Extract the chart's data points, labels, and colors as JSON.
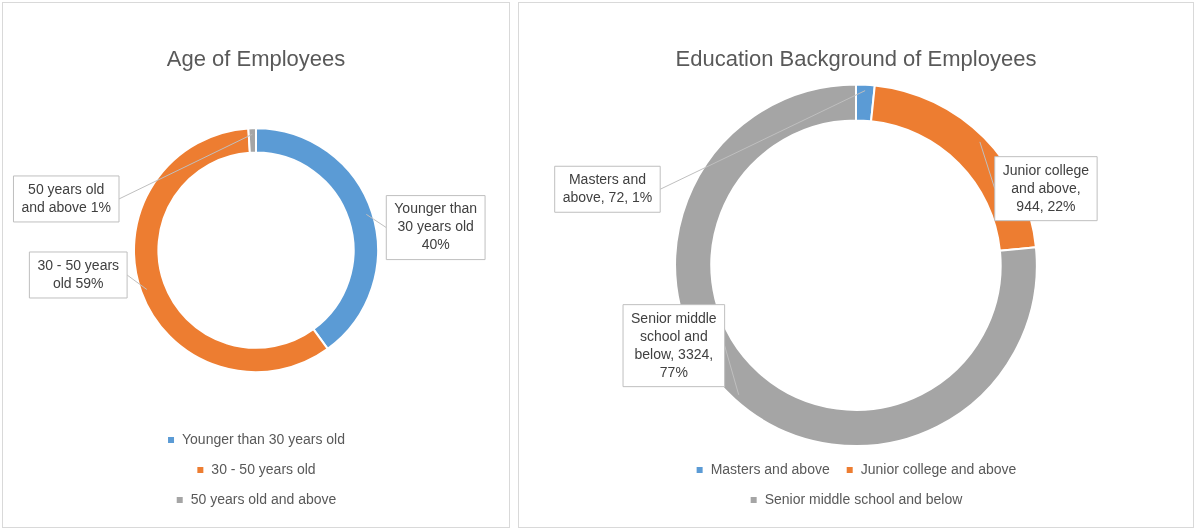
{
  "chart_data": [
    {
      "type": "donut",
      "title": "Age of Employees",
      "categories": [
        "Younger than 30 years old",
        "30 - 50 years old",
        "50 years old and above"
      ],
      "values": [
        40,
        59,
        1
      ],
      "colors": [
        "#5b9bd5",
        "#ed7d31",
        "#a5a5a5"
      ],
      "value_labels": [
        "Younger than 30 years old 40%",
        "30 - 50 years old 59%",
        "50 years old and above 1%"
      ],
      "legend": "bottom"
    },
    {
      "type": "donut",
      "title": "Education Background of Employees",
      "categories": [
        "Masters and above",
        "Junior college and above",
        "Senior middle school and below"
      ],
      "values": [
        72,
        944,
        3324
      ],
      "colors": [
        "#5b9bd5",
        "#ed7d31",
        "#a5a5a5"
      ],
      "value_labels": [
        "Masters and above, 72, 1%",
        "Junior college and above, 944, 22%",
        "Senior middle school and below, 3324, 77%"
      ],
      "legend": "bottom"
    }
  ]
}
